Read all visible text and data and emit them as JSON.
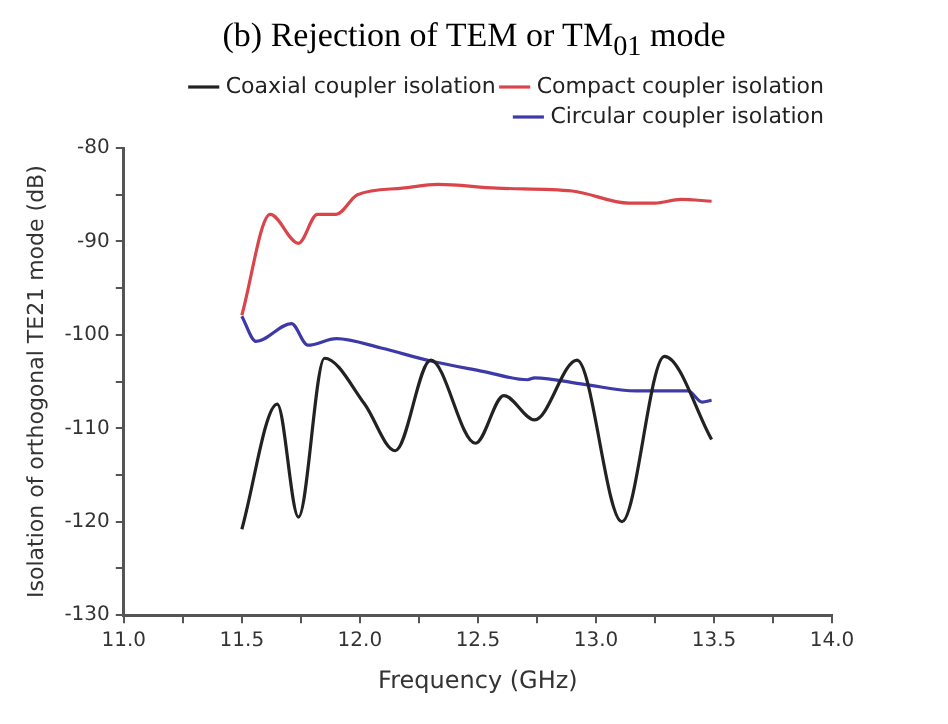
{
  "chart_data": {
    "type": "line",
    "title": "(b) Rejection of TEM or TM$_{01}$ mode",
    "xlabel": "Frequency (GHz)",
    "ylabel": "Isolation of orthogonal TE21 mode (dB)",
    "xlim": [
      11,
      14
    ],
    "ylim": [
      -130,
      -80
    ],
    "xticks": [
      {
        "value": 11,
        "label": "11.0"
      },
      {
        "value": 11.25,
        "label": null
      },
      {
        "value": 11.5,
        "label": "11.5"
      },
      {
        "value": 11.75,
        "label": null
      },
      {
        "value": 12,
        "label": "12.0"
      },
      {
        "value": 12.25,
        "label": null
      },
      {
        "value": 12.5,
        "label": "12.5"
      },
      {
        "value": 12.75,
        "label": null
      },
      {
        "value": 13,
        "label": "13.0"
      },
      {
        "value": 13.25,
        "label": null
      },
      {
        "value": 13.5,
        "label": "13.5"
      },
      {
        "value": 13.75,
        "label": null
      },
      {
        "value": 14,
        "label": "14.0"
      }
    ],
    "yticks": [
      -130,
      {
        "value": -125,
        "label": null
      },
      -120,
      {
        "value": -115,
        "label": null
      },
      -110,
      {
        "value": -105,
        "label": null
      },
      -100,
      {
        "value": -95,
        "label": null
      },
      -90,
      {
        "value": -85,
        "label": null
      },
      -80
    ],
    "grid": false,
    "legend": "top right",
    "marker": "none",
    "line_style": "solid",
    "series": [
      {
        "name": "Coaxial coupler isolation",
        "color": "#222222",
        "x": [
          11.5,
          11.65,
          11.74,
          11.85,
          12.02,
          12.15,
          12.3,
          12.49,
          12.61,
          12.74,
          12.92,
          13.11,
          13.29,
          13.49
        ],
        "values": [
          -120.8,
          -107.4,
          -119.5,
          -102.5,
          -107.4,
          -112.4,
          -102.7,
          -111.6,
          -106.5,
          -109.1,
          -102.7,
          -120,
          -102.3,
          -111.2
        ]
      },
      {
        "name": "Compact coupler isolation",
        "color": "#d9454a",
        "x": [
          11.5,
          11.62,
          11.74,
          11.82,
          11.9,
          11.99,
          12.18,
          12.33,
          12.58,
          12.9,
          13.14,
          13.25,
          13.36,
          13.49
        ],
        "values": [
          -97.9,
          -87.1,
          -90.2,
          -87.1,
          -87.1,
          -85,
          -84.3,
          -83.9,
          -84.3,
          -84.6,
          -85.9,
          -85.9,
          -85.5,
          -85.7
        ]
      },
      {
        "name": "Circular coupler isolation",
        "color": "#3d3aa8",
        "x": [
          11.5,
          11.56,
          11.71,
          11.78,
          11.9,
          12.09,
          12.3,
          12.52,
          12.71,
          12.74,
          12.95,
          13.17,
          13.39,
          13.45,
          13.49
        ],
        "values": [
          -98,
          -100.7,
          -98.8,
          -101.1,
          -100.4,
          -101.4,
          -102.8,
          -103.9,
          -104.8,
          -104.6,
          -105.3,
          -106,
          -106,
          -107.2,
          -107
        ]
      }
    ]
  }
}
